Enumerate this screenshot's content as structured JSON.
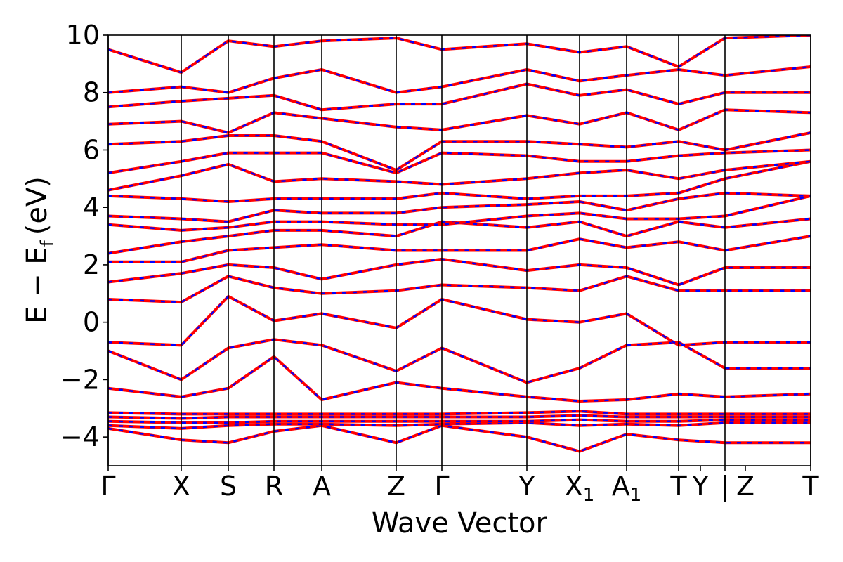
{
  "chart_data": {
    "type": "line",
    "xlabel": "Wave Vector",
    "ylabel": "E − E",
    "ylabel_subscript": "f",
    "ylabel_unit": "(eV)",
    "ylim": [
      -5,
      10
    ],
    "yticks": [
      -4,
      -2,
      0,
      2,
      4,
      6,
      8,
      10
    ],
    "ytick_labels": [
      "−4",
      "−2",
      "0",
      "2",
      "4",
      "6",
      "8",
      "10"
    ],
    "xlim": [
      0,
      1
    ],
    "kpoints": [
      {
        "label": "Γ",
        "sub": "",
        "x": 0.0
      },
      {
        "label": "X",
        "sub": "",
        "x": 0.104
      },
      {
        "label": "S",
        "sub": "",
        "x": 0.171
      },
      {
        "label": "R",
        "sub": "",
        "x": 0.236
      },
      {
        "label": "A",
        "sub": "",
        "x": 0.304
      },
      {
        "label": "Z",
        "sub": "",
        "x": 0.41
      },
      {
        "label": "Γ",
        "sub": "",
        "x": 0.475
      },
      {
        "label": "Y",
        "sub": "",
        "x": 0.596
      },
      {
        "label": "X",
        "sub": "1",
        "x": 0.671
      },
      {
        "label": "A",
        "sub": "1",
        "x": 0.738
      },
      {
        "label": "T",
        "sub": "",
        "x": 0.812
      },
      {
        "label": "Y",
        "sub": "",
        "x": 0.843
      },
      {
        "label": "|",
        "sub": "",
        "x": 0.878
      },
      {
        "label": "Z",
        "sub": "",
        "x": 0.907
      },
      {
        "label": "T",
        "sub": "",
        "x": 1.0
      }
    ],
    "section_boundaries": [
      0.0,
      0.104,
      0.171,
      0.236,
      0.304,
      0.41,
      0.475,
      0.596,
      0.671,
      0.738,
      0.812,
      0.878,
      1.0
    ],
    "series_colors": {
      "primary": "#ff0000",
      "overlay": "#0000ff"
    },
    "grid": false,
    "bands": [
      {
        "x": [
          0,
          0.104,
          0.171,
          0.236,
          0.304,
          0.41,
          0.475,
          0.596,
          0.671,
          0.738,
          0.812,
          0.878,
          1.0
        ],
        "y": [
          -3.7,
          -4.1,
          -4.2,
          -3.8,
          -3.6,
          -4.2,
          -3.6,
          -4.0,
          -4.5,
          -3.9,
          -4.1,
          -4.2,
          -4.2
        ]
      },
      {
        "x": [
          0,
          0.104,
          0.171,
          0.236,
          0.304,
          0.41,
          0.475,
          0.596,
          0.671,
          0.738,
          0.812,
          0.878,
          1.0
        ],
        "y": [
          -3.6,
          -3.7,
          -3.6,
          -3.55,
          -3.55,
          -3.6,
          -3.55,
          -3.5,
          -3.6,
          -3.55,
          -3.6,
          -3.5,
          -3.5
        ]
      },
      {
        "x": [
          0,
          0.104,
          0.171,
          0.236,
          0.304,
          0.41,
          0.475,
          0.596,
          0.671,
          0.738,
          0.812,
          0.878,
          1.0
        ],
        "y": [
          -3.45,
          -3.5,
          -3.5,
          -3.45,
          -3.45,
          -3.45,
          -3.45,
          -3.45,
          -3.4,
          -3.45,
          -3.45,
          -3.4,
          -3.4
        ]
      },
      {
        "x": [
          0,
          0.104,
          0.171,
          0.236,
          0.304,
          0.41,
          0.475,
          0.596,
          0.671,
          0.738,
          0.812,
          0.878,
          1.0
        ],
        "y": [
          -3.3,
          -3.35,
          -3.3,
          -3.3,
          -3.3,
          -3.3,
          -3.3,
          -3.3,
          -3.25,
          -3.3,
          -3.3,
          -3.3,
          -3.3
        ]
      },
      {
        "x": [
          0,
          0.104,
          0.171,
          0.236,
          0.304,
          0.41,
          0.475,
          0.596,
          0.671,
          0.738,
          0.812,
          0.878,
          1.0
        ],
        "y": [
          -3.15,
          -3.2,
          -3.2,
          -3.2,
          -3.2,
          -3.2,
          -3.2,
          -3.15,
          -3.1,
          -3.2,
          -3.2,
          -3.2,
          -3.2
        ]
      },
      {
        "x": [
          0,
          0.104,
          0.171,
          0.236,
          0.304,
          0.41,
          0.475,
          0.596,
          0.671,
          0.738,
          0.812,
          0.878,
          1.0
        ],
        "y": [
          -2.3,
          -2.6,
          -2.3,
          -1.2,
          -2.7,
          -2.1,
          -2.3,
          -2.6,
          -2.75,
          -2.7,
          -2.5,
          -2.6,
          -2.5
        ]
      },
      {
        "x": [
          0,
          0.104,
          0.171,
          0.236,
          0.304,
          0.41,
          0.475,
          0.596,
          0.671,
          0.738,
          0.812,
          0.878,
          1.0
        ],
        "y": [
          -1.0,
          -2.0,
          -0.9,
          -0.6,
          -0.8,
          -1.7,
          -0.9,
          -2.1,
          -1.6,
          -0.8,
          -0.7,
          -1.6,
          -1.6
        ]
      },
      {
        "x": [
          0,
          0.104,
          0.171,
          0.236,
          0.304,
          0.41,
          0.475,
          0.596,
          0.671,
          0.738,
          0.812,
          0.878,
          1.0
        ],
        "y": [
          -0.7,
          -0.8,
          0.9,
          0.05,
          0.3,
          -0.2,
          0.8,
          0.1,
          0.0,
          0.3,
          -0.8,
          -0.7,
          -0.7
        ]
      },
      {
        "x": [
          0,
          0.104,
          0.171,
          0.236,
          0.304,
          0.41,
          0.475,
          0.596,
          0.671,
          0.738,
          0.812,
          0.878,
          1.0
        ],
        "y": [
          0.8,
          0.7,
          1.6,
          1.2,
          1.0,
          1.1,
          1.3,
          1.2,
          1.1,
          1.6,
          1.1,
          1.1,
          1.1
        ]
      },
      {
        "x": [
          0,
          0.104,
          0.171,
          0.236,
          0.304,
          0.41,
          0.475,
          0.596,
          0.671,
          0.738,
          0.812,
          0.878,
          1.0
        ],
        "y": [
          1.4,
          1.7,
          2.0,
          1.9,
          1.5,
          2.0,
          2.2,
          1.8,
          2.0,
          1.9,
          1.3,
          1.9,
          1.9
        ]
      },
      {
        "x": [
          0,
          0.104,
          0.171,
          0.236,
          0.304,
          0.41,
          0.475,
          0.596,
          0.671,
          0.738,
          0.812,
          0.878,
          1.0
        ],
        "y": [
          2.1,
          2.1,
          2.5,
          2.6,
          2.7,
          2.5,
          2.5,
          2.5,
          2.9,
          2.6,
          2.8,
          2.5,
          3.0
        ]
      },
      {
        "x": [
          0,
          0.104,
          0.171,
          0.236,
          0.304,
          0.41,
          0.475,
          0.596,
          0.671,
          0.738,
          0.812,
          0.878,
          1.0
        ],
        "y": [
          2.4,
          2.8,
          3.0,
          3.2,
          3.2,
          3.0,
          3.5,
          3.3,
          3.5,
          3.0,
          3.5,
          3.3,
          3.6
        ]
      },
      {
        "x": [
          0,
          0.104,
          0.171,
          0.236,
          0.304,
          0.41,
          0.475,
          0.596,
          0.671,
          0.738,
          0.812,
          0.878,
          1.0
        ],
        "y": [
          3.4,
          3.2,
          3.3,
          3.5,
          3.5,
          3.4,
          3.4,
          3.7,
          3.8,
          3.6,
          3.6,
          3.7,
          4.4
        ]
      },
      {
        "x": [
          0,
          0.104,
          0.171,
          0.236,
          0.304,
          0.41,
          0.475,
          0.596,
          0.671,
          0.738,
          0.812,
          0.878,
          1.0
        ],
        "y": [
          3.7,
          3.6,
          3.5,
          3.9,
          3.8,
          3.8,
          4.0,
          4.1,
          4.2,
          3.9,
          4.3,
          4.5,
          4.4
        ]
      },
      {
        "x": [
          0,
          0.104,
          0.171,
          0.236,
          0.304,
          0.41,
          0.475,
          0.596,
          0.671,
          0.738,
          0.812,
          0.878,
          1.0
        ],
        "y": [
          4.4,
          4.3,
          4.2,
          4.3,
          4.3,
          4.3,
          4.5,
          4.3,
          4.4,
          4.4,
          4.5,
          5.0,
          5.6
        ]
      },
      {
        "x": [
          0,
          0.104,
          0.171,
          0.236,
          0.304,
          0.41,
          0.475,
          0.596,
          0.671,
          0.738,
          0.812,
          0.878,
          1.0
        ],
        "y": [
          4.6,
          5.1,
          5.5,
          4.9,
          5.0,
          4.9,
          4.8,
          5.0,
          5.2,
          5.3,
          5.0,
          5.3,
          5.6
        ]
      },
      {
        "x": [
          0,
          0.104,
          0.171,
          0.236,
          0.304,
          0.41,
          0.475,
          0.596,
          0.671,
          0.738,
          0.812,
          0.878,
          1.0
        ],
        "y": [
          5.2,
          5.6,
          5.9,
          5.9,
          5.9,
          5.2,
          5.9,
          5.8,
          5.6,
          5.6,
          5.8,
          5.9,
          6.0
        ]
      },
      {
        "x": [
          0,
          0.104,
          0.171,
          0.236,
          0.304,
          0.41,
          0.475,
          0.596,
          0.671,
          0.738,
          0.812,
          0.878,
          1.0
        ],
        "y": [
          6.2,
          6.3,
          6.5,
          6.5,
          6.3,
          5.3,
          6.3,
          6.3,
          6.2,
          6.1,
          6.3,
          6.0,
          6.6
        ]
      },
      {
        "x": [
          0,
          0.104,
          0.171,
          0.236,
          0.304,
          0.41,
          0.475,
          0.596,
          0.671,
          0.738,
          0.812,
          0.878,
          1.0
        ],
        "y": [
          6.9,
          7.0,
          6.6,
          7.3,
          7.1,
          6.8,
          6.7,
          7.2,
          6.9,
          7.3,
          6.7,
          7.4,
          7.3
        ]
      },
      {
        "x": [
          0,
          0.104,
          0.171,
          0.236,
          0.304,
          0.41,
          0.475,
          0.596,
          0.671,
          0.738,
          0.812,
          0.878,
          1.0
        ],
        "y": [
          7.5,
          7.7,
          7.8,
          7.9,
          7.4,
          7.6,
          7.6,
          8.3,
          7.9,
          8.1,
          7.6,
          8.0,
          8.0
        ]
      },
      {
        "x": [
          0,
          0.104,
          0.171,
          0.236,
          0.304,
          0.41,
          0.475,
          0.596,
          0.671,
          0.738,
          0.812,
          0.878,
          1.0
        ],
        "y": [
          8.0,
          8.2,
          8.0,
          8.5,
          8.8,
          8.0,
          8.2,
          8.8,
          8.4,
          8.6,
          8.8,
          8.6,
          8.9
        ]
      },
      {
        "x": [
          0,
          0.104,
          0.171,
          0.236,
          0.304,
          0.41,
          0.475,
          0.596,
          0.671,
          0.738,
          0.812,
          0.878,
          1.0
        ],
        "y": [
          9.5,
          8.7,
          9.8,
          9.6,
          9.8,
          9.9,
          9.5,
          9.7,
          9.4,
          9.6,
          8.9,
          9.9,
          10.0
        ]
      }
    ]
  }
}
